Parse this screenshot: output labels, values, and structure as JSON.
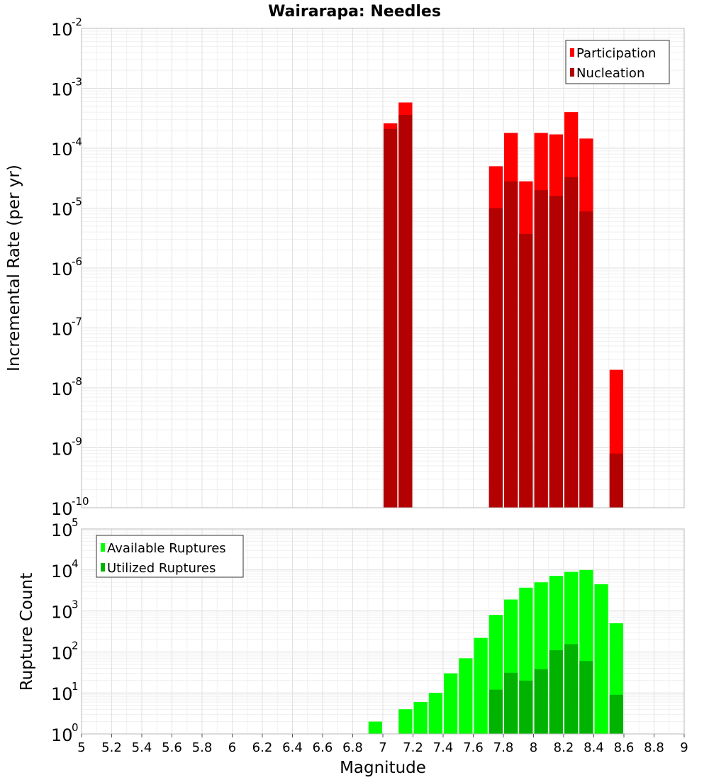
{
  "chart_data": [
    {
      "type": "bar",
      "title": "Wairarapa: Needles",
      "xlabel": "",
      "ylabel": "Incremental Rate (per yr)",
      "yscale": "log",
      "ylim_exponents": [
        -10,
        -2
      ],
      "xlim": [
        5,
        9
      ],
      "grid": true,
      "legend_position": "top-right",
      "bin_width": 0.1,
      "series": [
        {
          "name": "Participation",
          "color": "#ff0000",
          "x": [
            7.05,
            7.15,
            7.75,
            7.85,
            7.95,
            8.05,
            8.15,
            8.25,
            8.35,
            8.55
          ],
          "values": [
            0.00026,
            0.00058,
            5e-05,
            0.00018,
            2.8e-05,
            0.00018,
            0.00017,
            0.0004,
            0.000145,
            2e-08
          ]
        },
        {
          "name": "Nucleation",
          "color": "#b30000",
          "x": [
            7.05,
            7.15,
            7.75,
            7.85,
            7.95,
            8.05,
            8.15,
            8.25,
            8.35,
            8.55
          ],
          "values": [
            0.00021,
            0.00036,
            1e-05,
            2.8e-05,
            3.7e-06,
            2e-05,
            1.6e-05,
            3.3e-05,
            8.8e-06,
            8e-10
          ]
        }
      ]
    },
    {
      "type": "bar",
      "title": "",
      "xlabel": "Magnitude",
      "ylabel": "Rupture Count",
      "yscale": "log",
      "ylim_exponents": [
        0,
        5
      ],
      "xlim": [
        5,
        9
      ],
      "xticks": [
        "5",
        "5.2",
        "5.4",
        "5.6",
        "5.8",
        "6",
        "6.2",
        "6.4",
        "6.6",
        "6.8",
        "7",
        "7.2",
        "7.4",
        "7.6",
        "7.8",
        "8",
        "8.2",
        "8.4",
        "8.6",
        "8.8",
        "9"
      ],
      "grid": true,
      "legend_position": "top-left",
      "bin_width": 0.1,
      "series": [
        {
          "name": "Available Ruptures",
          "color": "#00ff00",
          "x": [
            6.95,
            7.05,
            7.15,
            7.25,
            7.35,
            7.45,
            7.55,
            7.65,
            7.75,
            7.85,
            7.95,
            8.05,
            8.15,
            8.25,
            8.35,
            8.45,
            8.55,
            8.65
          ],
          "values": [
            2,
            1,
            4,
            6,
            10,
            30,
            70,
            220,
            800,
            1900,
            3700,
            5000,
            7200,
            9000,
            10000,
            4500,
            500,
            1
          ]
        },
        {
          "name": "Utilized Ruptures",
          "color": "#00b300",
          "x": [
            7.05,
            7.15,
            7.75,
            7.85,
            7.95,
            8.05,
            8.15,
            8.25,
            8.35,
            8.55
          ],
          "values": [
            1,
            1,
            12,
            31,
            20,
            38,
            110,
            155,
            60,
            9
          ]
        }
      ]
    }
  ]
}
